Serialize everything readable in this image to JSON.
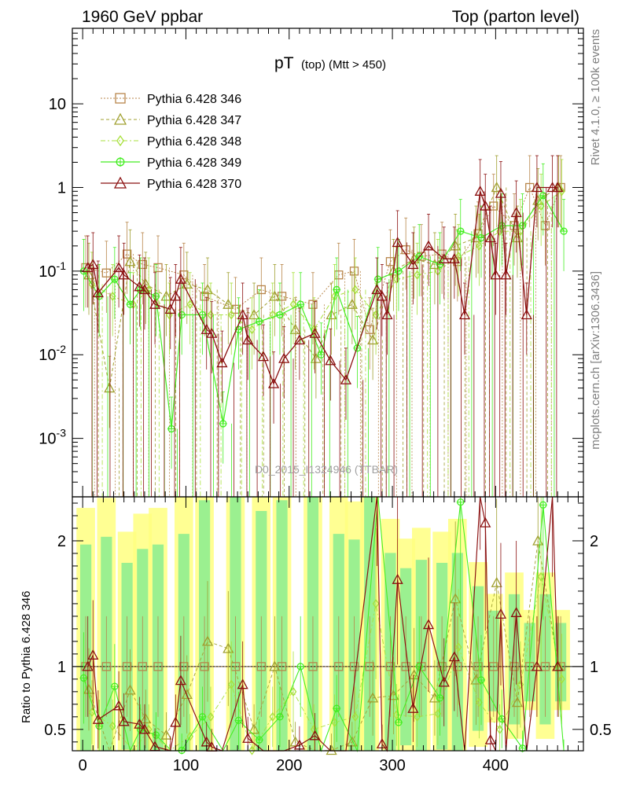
{
  "chart_data": {
    "type": "line",
    "header_left": "1960 GeV ppbar",
    "header_right": "Top (parton level)",
    "title_main": "pT",
    "title_sub": "(top) (Mtt > 450)",
    "side_label_top": "Rivet 4.1.0, ≥ 100k events",
    "side_label_bottom": "mcplots.cern.ch [arXiv:1306.3436]",
    "watermark": "D0_2015_I1324946 (TTBAR)",
    "ratio_ylabel": "Ratio to Pythia 6.428 346",
    "xlim": [
      -10,
      485
    ],
    "top_ylim": [
      0.0002,
      80
    ],
    "top_yscale": "log",
    "top_ytick_labels": [
      "10^-3",
      "10^-2",
      "10^-1",
      "1",
      "10"
    ],
    "ratio_ylim": [
      0.33,
      2.35
    ],
    "ratio_ytick_values": [
      0.5,
      1,
      2
    ],
    "ratio_ytick_labels": [
      "0.5",
      "1",
      "2"
    ],
    "xtick_values": [
      0,
      100,
      200,
      300,
      400
    ],
    "xtick_labels": [
      "0",
      "100",
      "200",
      "300",
      "400"
    ],
    "series": [
      {
        "name": "Pythia 6.428 346",
        "color": "#b8864b",
        "dash": "2,2",
        "marker": "square",
        "width": 1,
        "x": [
          3,
          23,
          43,
          58,
          73,
          98,
          118,
          148,
          173,
          193,
          223,
          248,
          263,
          278,
          298,
          313,
          328,
          348,
          363,
          383,
          398,
          418,
          433,
          448,
          463
        ],
        "values": [
          0.11,
          0.095,
          0.16,
          0.12,
          0.11,
          0.09,
          0.05,
          0.035,
          0.06,
          0.05,
          0.04,
          0.09,
          0.1,
          0.02,
          0.13,
          0.18,
          0.15,
          0.16,
          0.13,
          0.28,
          0.6,
          0.35,
          1.0,
          0.35,
          1.0
        ]
      },
      {
        "name": "Pythia 6.428 347",
        "color": "#a0a030",
        "dash": "4,3",
        "marker": "triangle",
        "width": 1,
        "x": [
          6,
          26,
          46,
          61,
          81,
          101,
          121,
          141,
          166,
          186,
          206,
          226,
          241,
          261,
          281,
          301,
          321,
          341,
          361,
          381,
          401,
          421,
          441,
          461
        ],
        "values": [
          0.09,
          0.004,
          0.13,
          0.07,
          0.05,
          0.07,
          0.06,
          0.04,
          0.03,
          0.05,
          0.02,
          0.009,
          0.03,
          0.04,
          0.015,
          0.1,
          0.14,
          0.12,
          0.2,
          0.25,
          1.0,
          0.25,
          0.7,
          1.0
        ]
      },
      {
        "name": "Pythia 6.428 348",
        "color": "#a8e03c",
        "dash": "6,3,2,3",
        "marker": "diamond",
        "width": 1,
        "x": [
          9,
          29,
          49,
          64,
          84,
          104,
          124,
          144,
          164,
          184,
          204,
          224,
          244,
          264,
          284,
          304,
          324,
          344,
          364,
          384,
          404,
          424,
          444,
          464
        ],
        "values": [
          0.07,
          0.05,
          0.04,
          0.06,
          0.03,
          0.04,
          0.03,
          0.03,
          0.02,
          0.03,
          0.04,
          0.02,
          0.05,
          0.06,
          0.03,
          0.08,
          0.09,
          0.1,
          0.15,
          0.2,
          0.3,
          0.3,
          0.6,
          0.9
        ]
      },
      {
        "name": "Pythia 6.428 349",
        "color": "#44ee22",
        "dash": "",
        "marker": "circleplus",
        "width": 1.2,
        "x": [
          1,
          16,
          31,
          46,
          56,
          71,
          86,
          96,
          116,
          136,
          151,
          171,
          191,
          211,
          231,
          246,
          266,
          286,
          306,
          326,
          346,
          366,
          386,
          406,
          426,
          446,
          466
        ],
        "values": [
          0.1,
          0.05,
          0.08,
          0.04,
          0.06,
          0.05,
          0.0013,
          0.03,
          0.03,
          0.0015,
          0.02,
          0.025,
          0.03,
          0.04,
          0.01,
          0.06,
          0.012,
          0.08,
          0.1,
          0.15,
          0.12,
          0.3,
          0.25,
          0.35,
          0.35,
          0.8,
          0.3
        ]
      },
      {
        "name": "Pythia 6.428 370",
        "color": "#8b1010",
        "dash": "",
        "marker": "triangle",
        "width": 1.3,
        "x": [
          5,
          10,
          15,
          35,
          40,
          55,
          60,
          70,
          85,
          90,
          95,
          120,
          125,
          135,
          155,
          160,
          175,
          185,
          195,
          210,
          225,
          240,
          255,
          285,
          290,
          295,
          305,
          320,
          335,
          350,
          360,
          370,
          385,
          390,
          395,
          400,
          405,
          410,
          420,
          430,
          440,
          455,
          460
        ],
        "values": [
          0.11,
          0.12,
          0.055,
          0.11,
          0.09,
          0.065,
          0.06,
          0.04,
          0.035,
          0.05,
          0.08,
          0.02,
          0.018,
          0.008,
          0.03,
          0.015,
          0.0095,
          0.0045,
          0.009,
          0.015,
          0.018,
          0.0085,
          0.005,
          0.06,
          0.05,
          0.03,
          0.22,
          0.12,
          0.2,
          0.14,
          0.14,
          0.03,
          0.9,
          0.6,
          0.25,
          0.09,
          0.85,
          0.09,
          0.5,
          0.03,
          1.0,
          1.0,
          1.0
        ]
      }
    ]
  }
}
